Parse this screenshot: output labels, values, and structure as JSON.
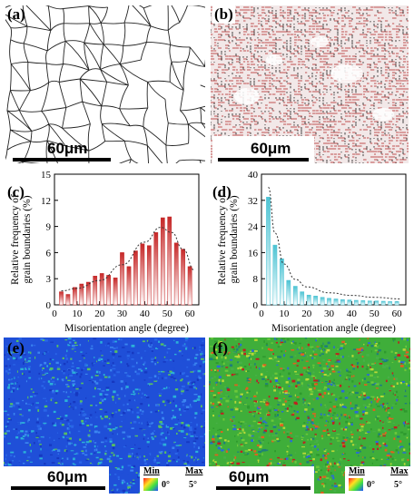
{
  "panels": {
    "a": {
      "label": "(a)",
      "scale": "60μm"
    },
    "b": {
      "label": "(b)",
      "scale": "60μm"
    },
    "c": {
      "label": "(c)"
    },
    "d": {
      "label": "(d)"
    },
    "e": {
      "label": "(e)",
      "scale": "60μm",
      "legend": {
        "min": "Min",
        "max": "Max",
        "min_val": "0°",
        "max_val": "5°"
      }
    },
    "f": {
      "label": "(f)",
      "scale": "60μm",
      "legend": {
        "min": "Min",
        "max": "Max",
        "min_val": "0°",
        "max_val": "5°"
      }
    }
  },
  "colors": {
    "bar_c": "#c62828",
    "bar_d": "#4cc3d3",
    "map_e": "#1f4fd8",
    "map_f": "#3fae3a"
  },
  "chart_data": [
    {
      "panel": "c",
      "type": "bar",
      "xlabel": "Misorientation angle (degree)",
      "ylabel": "Relative frequency of grain boundaries (%)",
      "ylabel_lines": [
        "Relative frequency of",
        "grain boundaries (%)"
      ],
      "x": [
        3,
        6,
        9,
        12,
        15,
        18,
        21,
        24,
        27,
        30,
        33,
        36,
        39,
        42,
        45,
        48,
        51,
        54,
        57,
        60
      ],
      "values": [
        1.5,
        1.2,
        2.0,
        2.4,
        2.6,
        3.3,
        3.6,
        3.4,
        3.1,
        6.0,
        4.4,
        6.2,
        7.0,
        6.8,
        8.3,
        10.0,
        10.1,
        7.1,
        6.4,
        4.4
      ],
      "fit": [
        [
          3,
          1.6
        ],
        [
          10,
          1.9
        ],
        [
          20,
          2.8
        ],
        [
          30,
          4.6
        ],
        [
          40,
          7.2
        ],
        [
          47,
          8.9
        ],
        [
          52,
          8.3
        ],
        [
          57,
          6.4
        ],
        [
          62,
          4.0
        ]
      ],
      "xlim": [
        0,
        64
      ],
      "ylim": [
        0,
        15
      ],
      "xticks": [
        0,
        10,
        20,
        30,
        40,
        50,
        60
      ],
      "yticks": [
        0,
        3,
        6,
        9,
        12,
        15
      ]
    },
    {
      "panel": "d",
      "type": "bar",
      "xlabel": "Misorientation angle (degree)",
      "ylabel": "Relative frequency of grain boundaries (%)",
      "ylabel_lines": [
        "Relative frequency of",
        "grain boundaries (%)"
      ],
      "x": [
        3,
        6,
        9,
        12,
        15,
        18,
        21,
        24,
        27,
        30,
        33,
        36,
        39,
        42,
        45,
        48,
        51,
        54,
        57,
        60
      ],
      "values": [
        33.0,
        18.3,
        14.1,
        7.5,
        5.7,
        4.0,
        3.0,
        2.7,
        2.3,
        2.0,
        1.8,
        1.6,
        1.5,
        1.4,
        1.3,
        1.2,
        1.2,
        1.1,
        1.0,
        1.0
      ],
      "fit": [
        [
          3,
          36.0
        ],
        [
          6,
          22.0
        ],
        [
          10,
          12.5
        ],
        [
          15,
          7.8
        ],
        [
          20,
          5.5
        ],
        [
          30,
          3.7
        ],
        [
          40,
          2.9
        ],
        [
          50,
          2.3
        ],
        [
          62,
          1.8
        ]
      ],
      "xlim": [
        0,
        64
      ],
      "ylim": [
        0,
        40
      ],
      "xticks": [
        0,
        10,
        20,
        30,
        40,
        50,
        60
      ],
      "yticks": [
        0,
        8,
        16,
        24,
        32,
        40
      ]
    }
  ]
}
